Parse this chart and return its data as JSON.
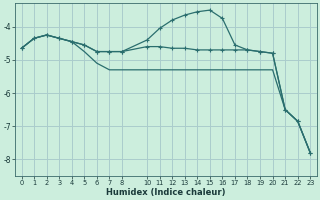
{
  "xlabel": "Humidex (Indice chaleur)",
  "bg_color": "#cceedd",
  "grid_color": "#aacccc",
  "line_color": "#2a6e6e",
  "xlim": [
    -0.5,
    23.5
  ],
  "ylim": [
    -8.5,
    -3.3
  ],
  "yticks": [
    -8,
    -7,
    -6,
    -5,
    -4
  ],
  "xtick_positions": [
    0,
    1,
    2,
    3,
    4,
    5,
    6,
    7,
    8,
    10,
    11,
    12,
    13,
    14,
    15,
    16,
    17,
    18,
    19,
    20,
    21,
    22,
    23
  ],
  "xtick_labels": [
    "0",
    "1",
    "2",
    "3",
    "4",
    "5",
    "6",
    "7",
    "8",
    "10",
    "11",
    "12",
    "13",
    "14",
    "15",
    "16",
    "17",
    "18",
    "19",
    "20",
    "21",
    "22",
    "23"
  ],
  "series": [
    {
      "x": [
        0,
        1,
        2,
        3,
        4,
        5,
        6,
        7,
        8,
        10,
        11,
        12,
        13,
        14,
        15,
        16,
        17,
        18,
        19,
        20,
        21,
        22,
        23
      ],
      "y": [
        -4.65,
        -4.35,
        -4.25,
        -4.35,
        -4.45,
        -4.55,
        -4.75,
        -4.75,
        -4.75,
        -4.6,
        -4.6,
        -4.65,
        -4.65,
        -4.7,
        -4.7,
        -4.7,
        -4.7,
        -4.7,
        -4.75,
        -4.8,
        -6.5,
        -6.85,
        -7.8
      ],
      "marker": true
    },
    {
      "x": [
        0,
        1,
        2,
        3,
        4,
        5,
        6,
        7,
        8,
        10,
        11,
        12,
        13,
        14,
        15,
        16,
        17,
        18,
        19,
        20,
        21,
        22,
        23
      ],
      "y": [
        -4.65,
        -4.35,
        -4.25,
        -4.35,
        -4.45,
        -4.55,
        -4.75,
        -4.75,
        -4.75,
        -4.4,
        -4.05,
        -3.8,
        -3.65,
        -3.55,
        -3.5,
        -3.75,
        -4.55,
        -4.7,
        -4.75,
        -4.8,
        -6.5,
        -6.85,
        -7.8
      ],
      "marker": true
    },
    {
      "x": [
        0,
        1,
        2,
        3,
        4,
        5,
        6,
        7,
        8,
        10,
        11,
        12,
        13,
        14,
        15,
        16,
        17,
        18,
        19,
        20,
        21,
        22,
        23
      ],
      "y": [
        -4.65,
        -4.35,
        -4.25,
        -4.35,
        -4.45,
        -4.75,
        -5.1,
        -5.3,
        -5.3,
        -5.3,
        -5.3,
        -5.3,
        -5.3,
        -5.3,
        -5.3,
        -5.3,
        -5.3,
        -5.3,
        -5.3,
        -5.3,
        -6.5,
        -6.85,
        -7.8
      ],
      "marker": false
    }
  ]
}
